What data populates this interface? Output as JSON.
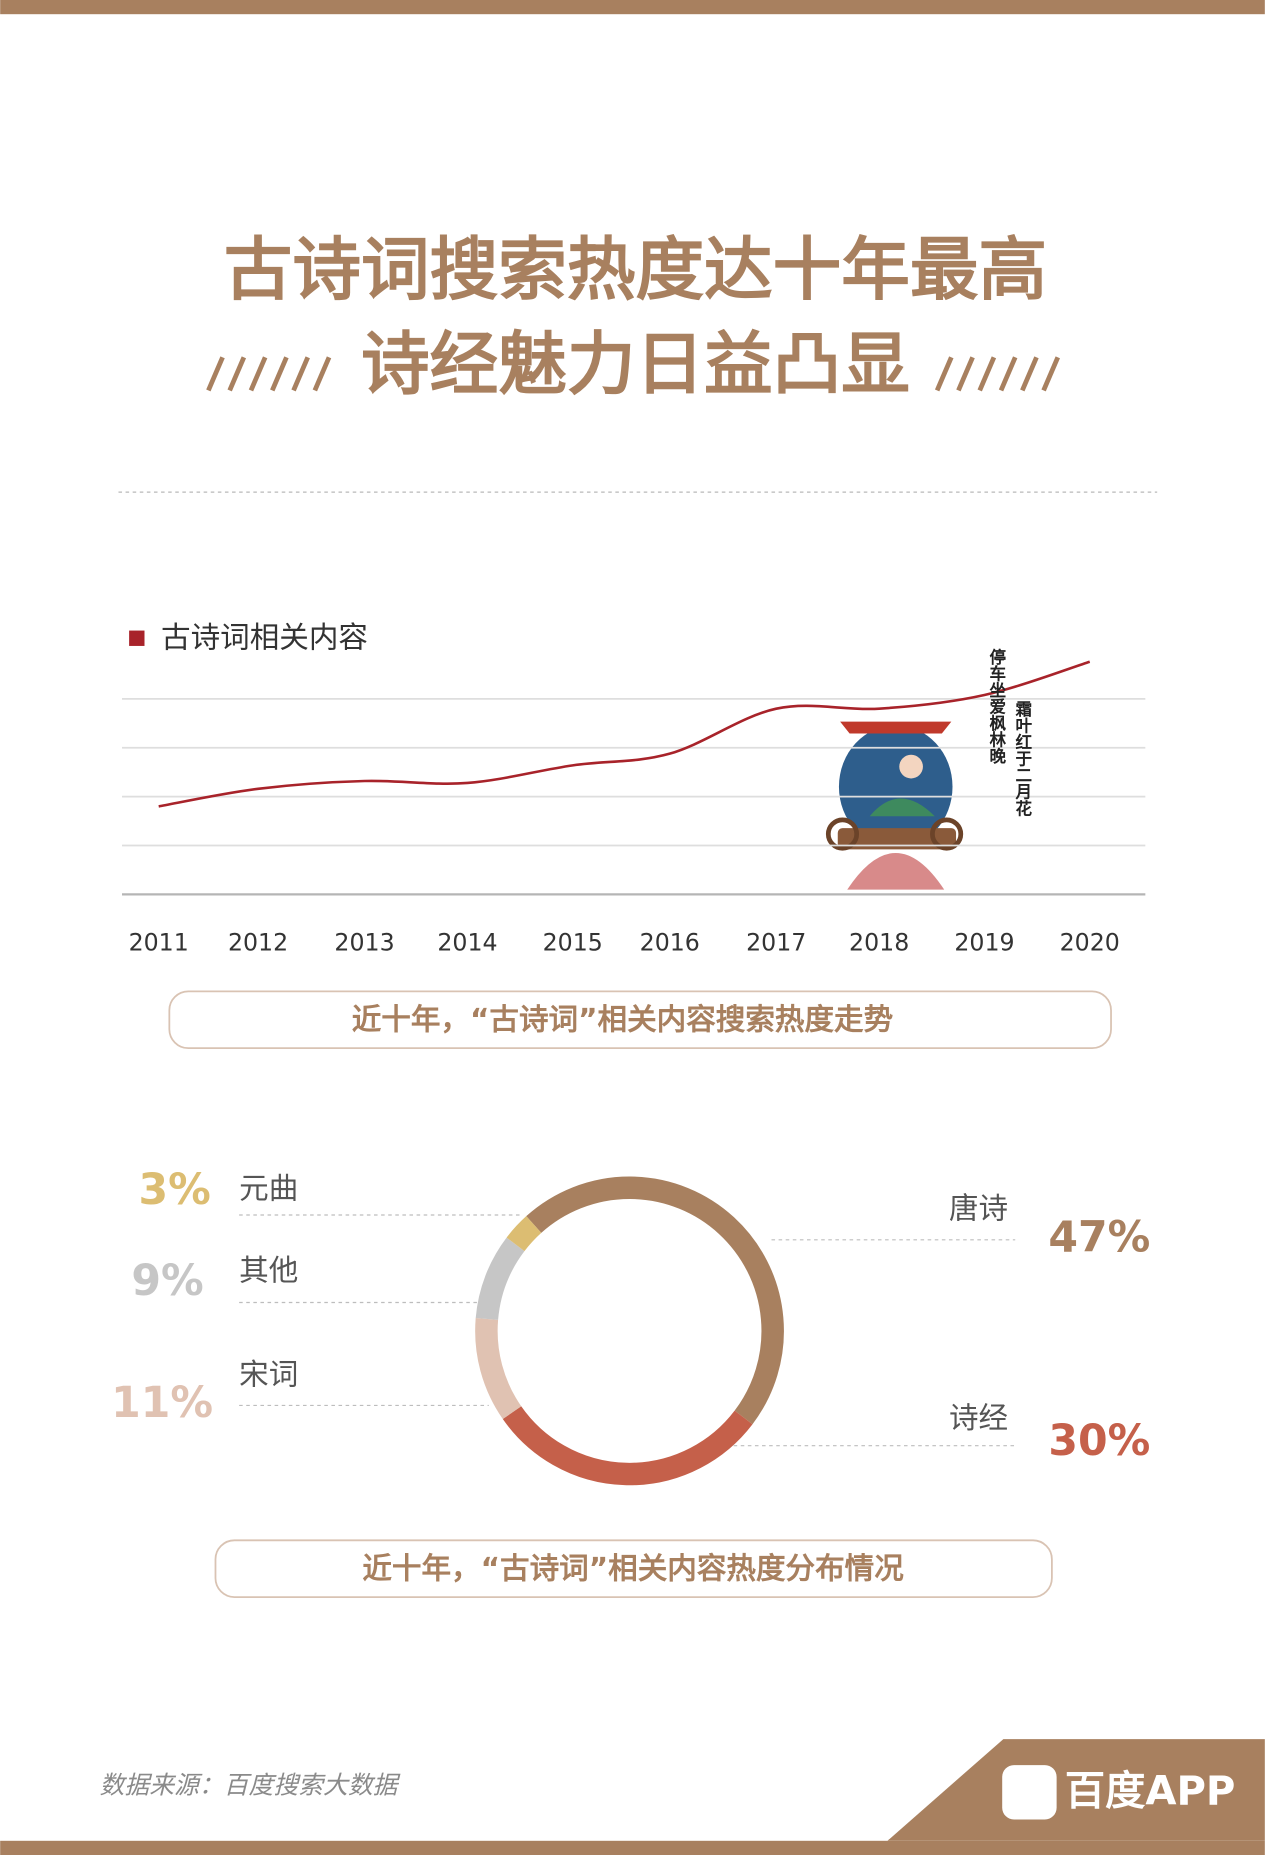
{
  "header": {
    "title": [
      "古诗词搜索热度达十年最高",
      "诗经魅力日益凸显"
    ]
  },
  "chart_data": [
    {
      "type": "line",
      "categories": [
        "2011",
        "2012",
        "2013",
        "2014",
        "2015",
        "2016",
        "2017",
        "2018",
        "2019",
        "2020"
      ],
      "series": [
        {
          "name": "古诗词相关内容",
          "color": "#a8232a",
          "values": [
            45,
            54,
            58,
            57,
            66,
            72,
            95,
            95,
            102,
            119
          ]
        }
      ],
      "ylim": [
        0,
        130
      ],
      "yticks": [
        0,
        25,
        50,
        75,
        100
      ],
      "grid": true,
      "annotations": [
        "停车坐爱枫林晚",
        "霜叶红于二月花"
      ],
      "caption": "近十年，“古诗词”相关内容搜索热度走势"
    },
    {
      "type": "donut",
      "categories": [
        "唐诗",
        "诗经",
        "宋词",
        "其他",
        "元曲"
      ],
      "values": [
        47,
        30,
        11,
        9,
        3
      ],
      "value_labels": [
        "47%",
        "30%",
        "11%",
        "9%",
        "3%"
      ],
      "colors": [
        "#a8805f",
        "#c5604a",
        "#e0c2b2",
        "#c6c6c6",
        "#dcbd72"
      ],
      "caption": "近十年，“古诗词”相关内容热度分布情况"
    }
  ],
  "footer": {
    "source": "数据来源：百度搜索大数据",
    "brand": "百度APP"
  }
}
